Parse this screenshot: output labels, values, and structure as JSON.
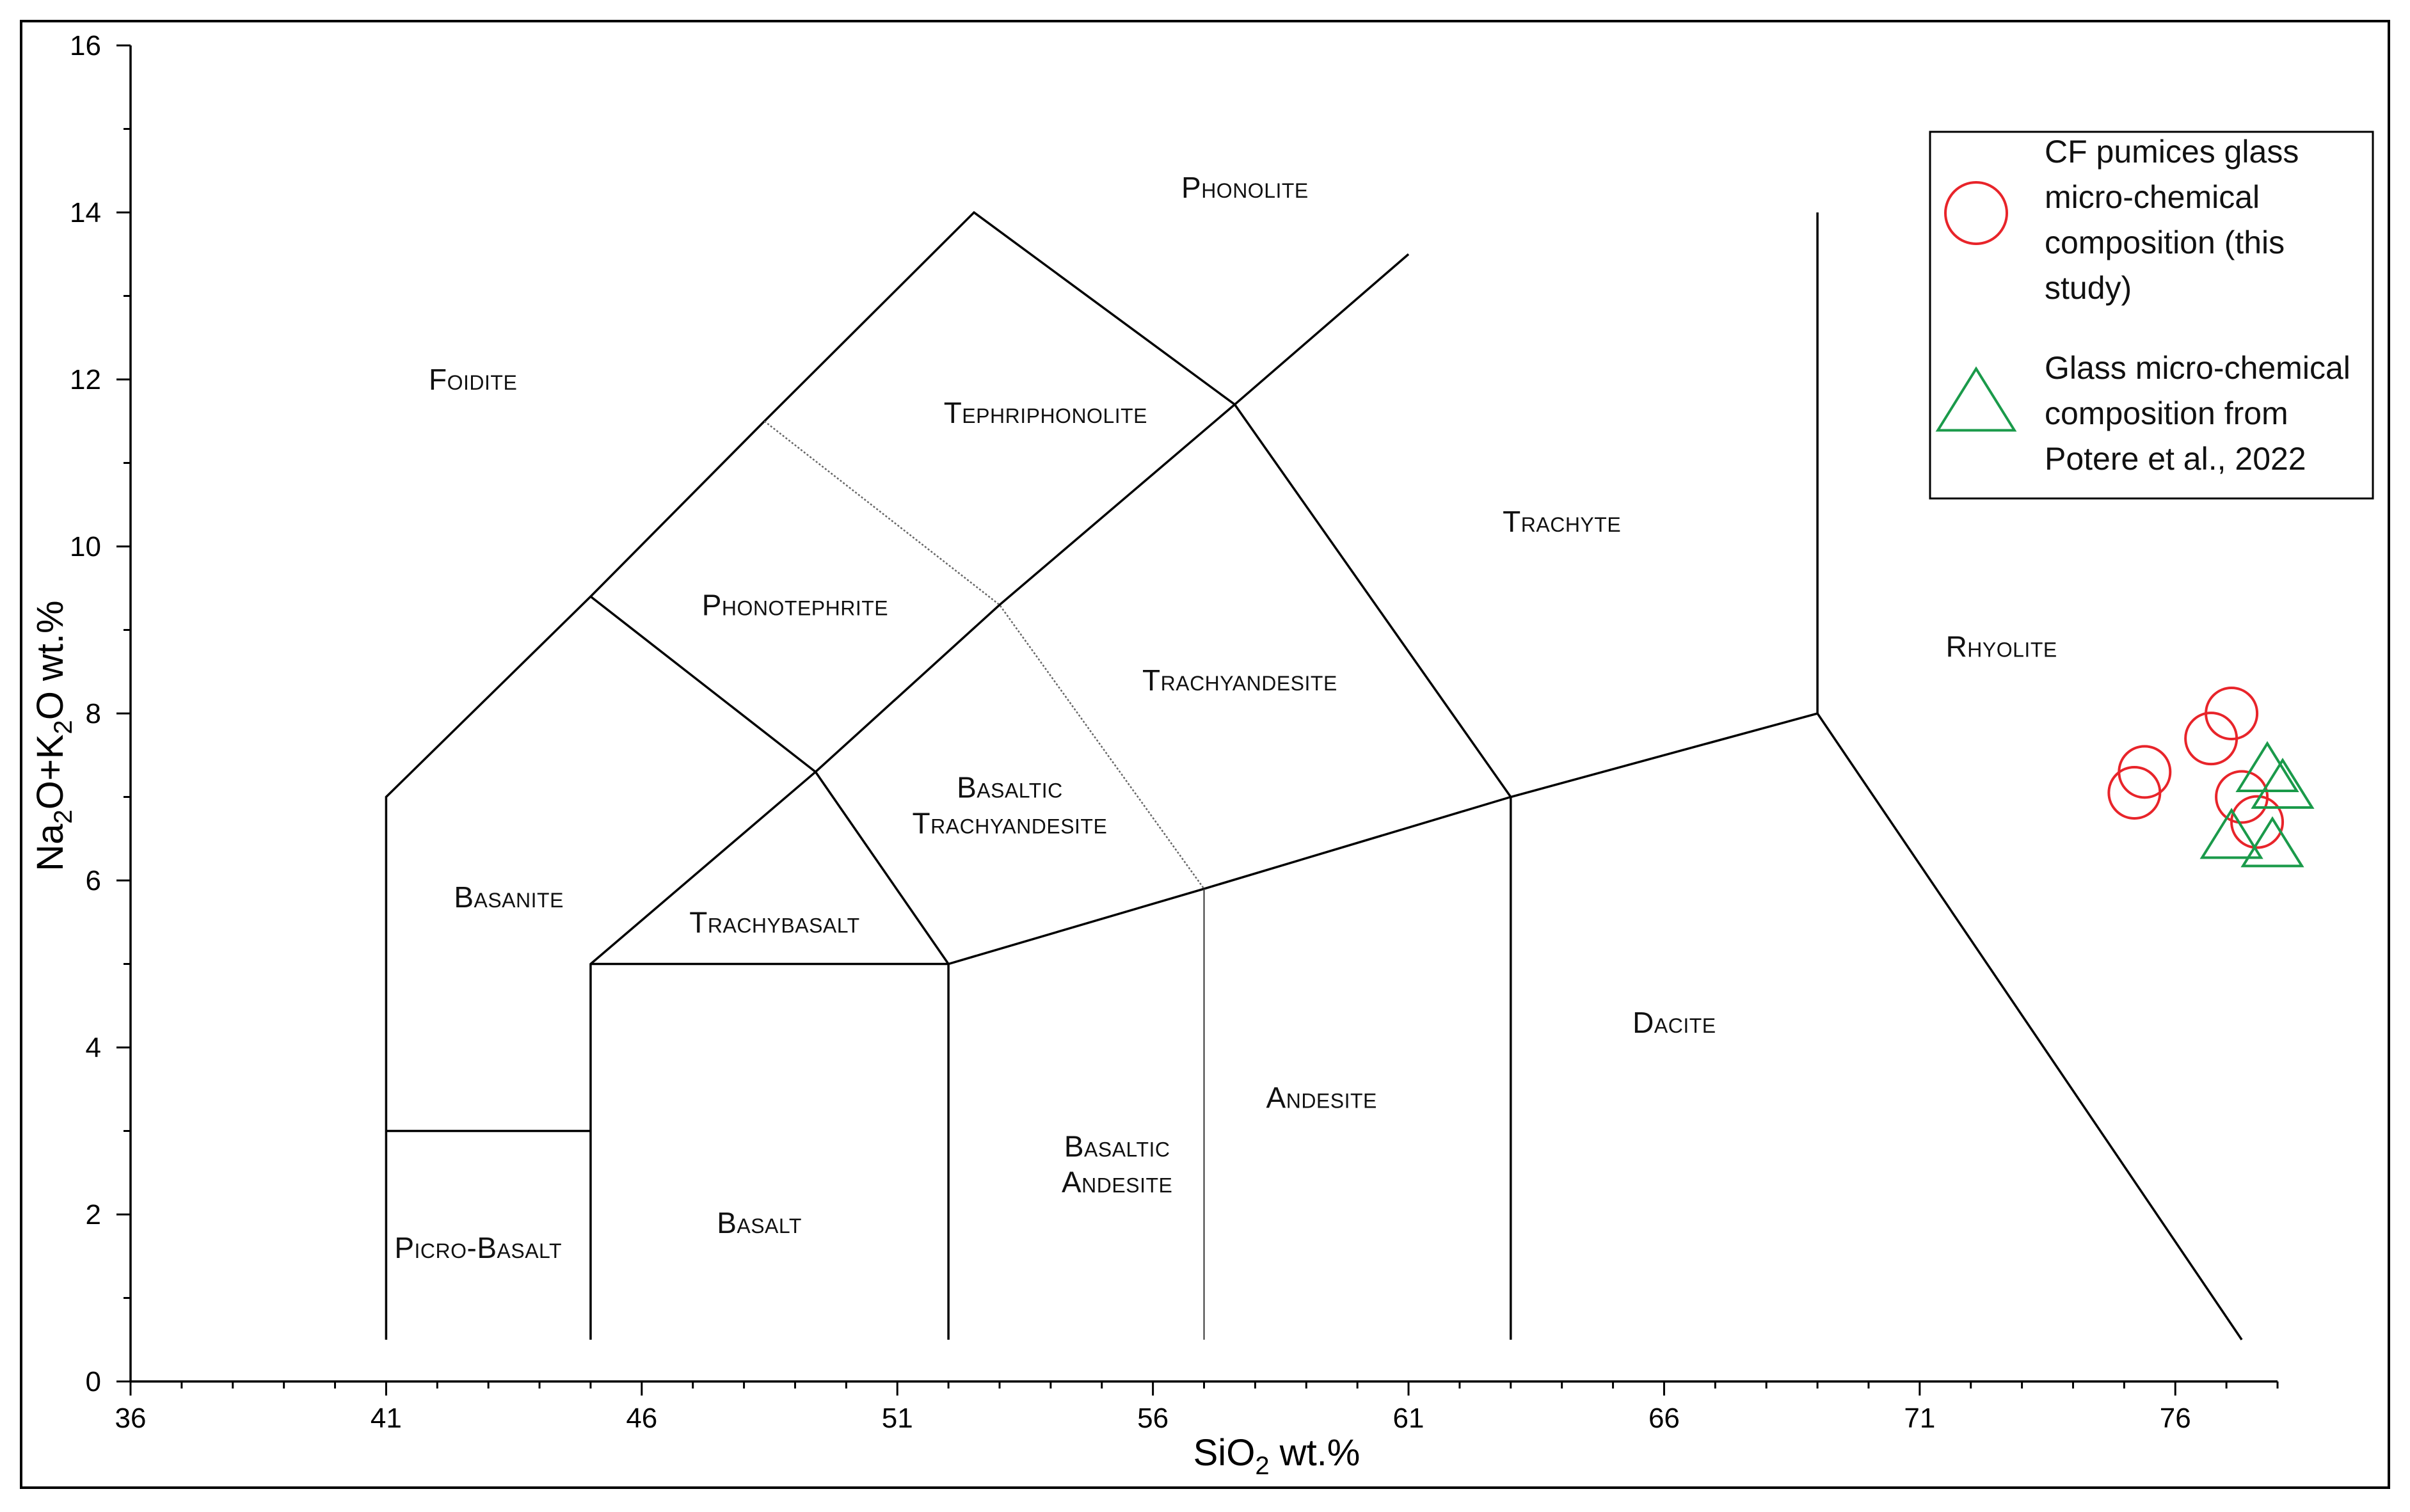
{
  "chart_data": {
    "type": "scatter",
    "title": "",
    "xlabel": "SiO",
    "xlabel_sub": "2",
    "xlabel_tail": " wt.%",
    "ylabel_parts": [
      "Na",
      "2",
      "O+K",
      "2",
      "O wt.%"
    ],
    "xlim": [
      36,
      78
    ],
    "ylim": [
      0,
      16
    ],
    "x_ticks": [
      "36",
      "41",
      "46",
      "51",
      "56",
      "61",
      "66",
      "71",
      "76"
    ],
    "y_ticks": [
      "0",
      "2",
      "4",
      "6",
      "8",
      "10",
      "12",
      "14",
      "16"
    ],
    "grid": false,
    "legend_position": "top-right",
    "field_boundaries": [
      {
        "style": "solid",
        "points": [
          [
            41,
            0.5
          ],
          [
            41,
            7
          ],
          [
            45,
            9.4
          ],
          [
            48.4,
            11.5
          ],
          [
            52.5,
            14
          ],
          [
            57.6,
            11.7
          ],
          [
            63,
            7
          ],
          [
            63,
            0.5
          ]
        ]
      },
      {
        "style": "solid",
        "points": [
          [
            41,
            3
          ],
          [
            45,
            3
          ]
        ]
      },
      {
        "style": "solid",
        "points": [
          [
            45,
            0.5
          ],
          [
            45,
            5
          ],
          [
            49.4,
            7.3
          ],
          [
            53,
            9.3
          ],
          [
            57.6,
            11.7
          ],
          [
            61,
            13.5
          ]
        ]
      },
      {
        "style": "solid",
        "points": [
          [
            45,
            5
          ],
          [
            52,
            5
          ],
          [
            57,
            5.9
          ],
          [
            63,
            7
          ],
          [
            69,
            8
          ],
          [
            77.3,
            0.5
          ]
        ]
      },
      {
        "style": "solid",
        "points": [
          [
            52,
            0.5
          ],
          [
            52,
            5
          ],
          [
            49.4,
            7.3
          ],
          [
            45,
            9.4
          ]
        ]
      },
      {
        "style": "solid",
        "points": [
          [
            69,
            8
          ],
          [
            69,
            14
          ]
        ]
      },
      {
        "style": "thin",
        "points": [
          [
            57,
            0.5
          ],
          [
            57,
            5.9
          ]
        ]
      },
      {
        "style": "dotted",
        "points": [
          [
            48.4,
            11.5
          ],
          [
            53,
            9.3
          ],
          [
            57,
            5.9
          ]
        ]
      }
    ],
    "field_labels": [
      {
        "lines": [
          "Foidite"
        ],
        "x": 42.7,
        "y": 12
      },
      {
        "lines": [
          "Phonolite"
        ],
        "x": 57.8,
        "y": 14.3
      },
      {
        "lines": [
          "Tephriphonolite"
        ],
        "x": 53.9,
        "y": 11.6
      },
      {
        "lines": [
          "Phonotephrite"
        ],
        "x": 49,
        "y": 9.3
      },
      {
        "lines": [
          "Trachyandesite"
        ],
        "x": 57.7,
        "y": 8.4
      },
      {
        "lines": [
          "Trachyte"
        ],
        "x": 64,
        "y": 10.3
      },
      {
        "lines": [
          "Rhyolite"
        ],
        "x": 72.6,
        "y": 8.8
      },
      {
        "lines": [
          "Basaltic",
          "Trachyandesite"
        ],
        "x": 53.2,
        "y": 6.9
      },
      {
        "lines": [
          "Basanite"
        ],
        "x": 43.4,
        "y": 5.8
      },
      {
        "lines": [
          "Trachybasalt"
        ],
        "x": 48.6,
        "y": 5.5
      },
      {
        "lines": [
          "Dacite"
        ],
        "x": 66.2,
        "y": 4.3
      },
      {
        "lines": [
          "Andesite"
        ],
        "x": 59.3,
        "y": 3.4
      },
      {
        "lines": [
          "Basaltic",
          "Andesite"
        ],
        "x": 55.3,
        "y": 2.6
      },
      {
        "lines": [
          "Basalt"
        ],
        "x": 48.3,
        "y": 1.9
      },
      {
        "lines": [
          "Picro-Basalt"
        ],
        "x": 42.8,
        "y": 1.6
      }
    ],
    "series": [
      {
        "name": "CF pumices glass micro-chemical composition (this study)",
        "legend_lines": [
          "CF pumices glass",
          "micro-chemical",
          "composition (this",
          "study)"
        ],
        "marker": "circle",
        "color": "#e8242a",
        "points": [
          [
            75.2,
            7.05
          ],
          [
            75.4,
            7.3
          ],
          [
            76.7,
            7.7
          ],
          [
            77.1,
            8.0
          ],
          [
            77.3,
            7.0
          ],
          [
            77.6,
            6.7
          ]
        ]
      },
      {
        "name": "Glass micro-chemical composition from Potere et al., 2022",
        "legend_lines": [
          "Glass micro-chemical",
          "composition from",
          "Potere et al., 2022"
        ],
        "marker": "triangle",
        "color": "#1a9a4a",
        "points": [
          [
            77.1,
            6.5
          ],
          [
            77.8,
            7.3
          ],
          [
            78.1,
            7.1
          ],
          [
            77.9,
            6.4
          ]
        ]
      }
    ]
  }
}
